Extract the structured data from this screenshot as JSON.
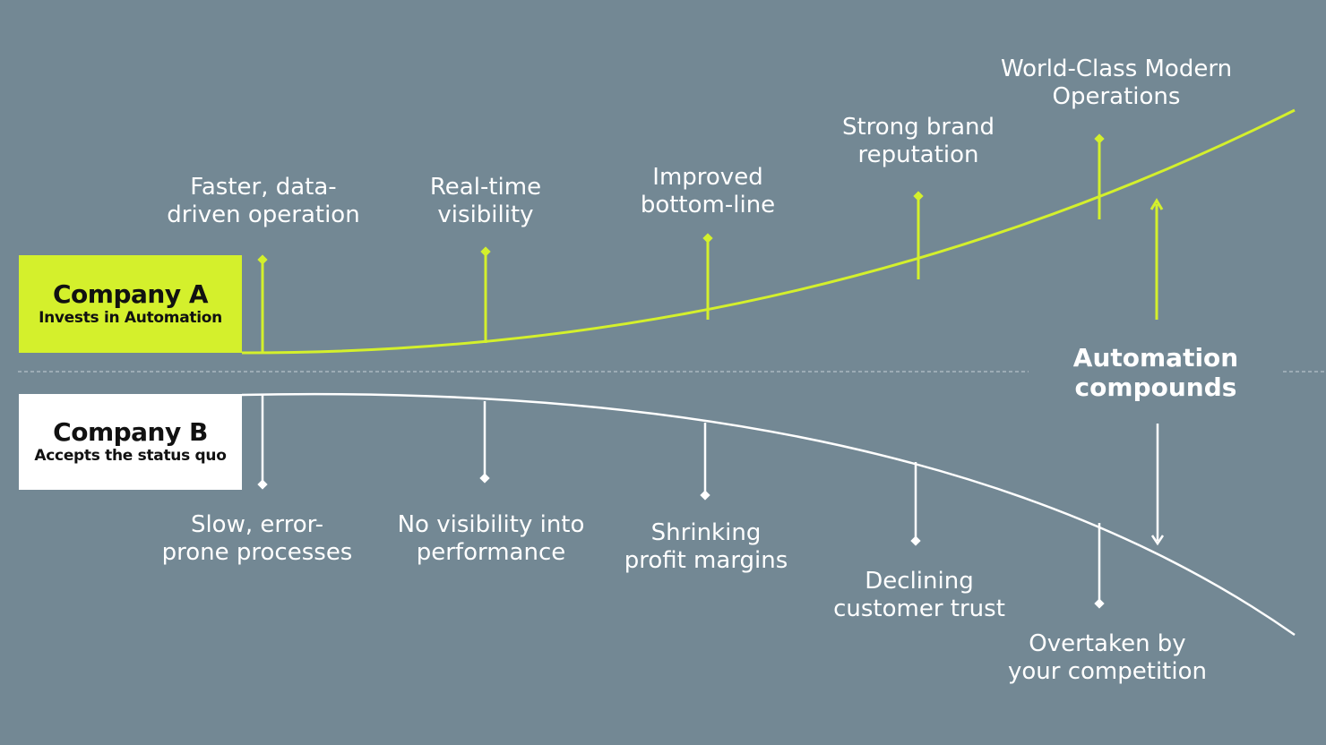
{
  "colors": {
    "background": "#738894",
    "accent": "#d4f02c",
    "company_b": "#ffffff",
    "text": "#ffffff",
    "box_text": "#111111"
  },
  "company_a": {
    "title": "Company A",
    "subtitle": "Invests in Automation"
  },
  "company_b": {
    "title": "Company B",
    "subtitle": "Accepts the status quo"
  },
  "center_label": {
    "line1": "Automation",
    "line2": "compounds"
  },
  "milestones_a": [
    {
      "line1": "Faster, data-",
      "line2": "driven operation"
    },
    {
      "line1": "Real-time",
      "line2": "visibility"
    },
    {
      "line1": "Improved",
      "line2": "bottom-line"
    },
    {
      "line1": "Strong brand",
      "line2": "reputation"
    },
    {
      "line1": "World-Class Modern",
      "line2": "Operations"
    }
  ],
  "milestones_b": [
    {
      "line1": "Slow, error-",
      "line2": "prone processes"
    },
    {
      "line1": "No visibility into",
      "line2": "performance"
    },
    {
      "line1": "Shrinking",
      "line2": "profit margins"
    },
    {
      "line1": "Declining",
      "line2": "customer trust"
    },
    {
      "line1": "Overtaken by",
      "line2": "your competition"
    }
  ]
}
